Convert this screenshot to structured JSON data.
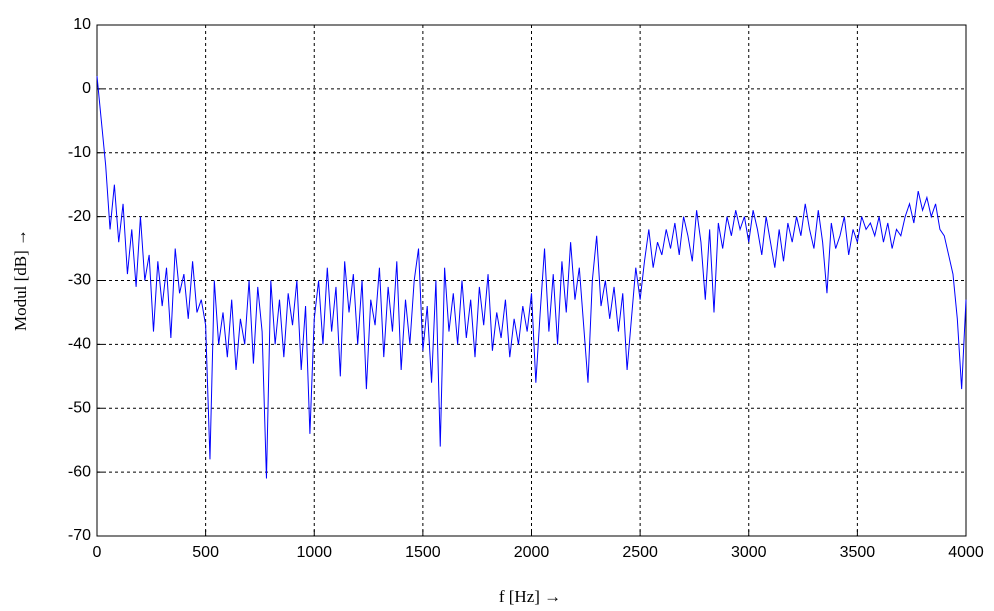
{
  "chart_data": {
    "type": "line",
    "xlabel": "f [Hz] →",
    "ylabel": "Modul [dB] →",
    "xlim": [
      0,
      4000
    ],
    "ylim": [
      -70,
      10
    ],
    "xticks": [
      0,
      500,
      1000,
      1500,
      2000,
      2500,
      3000,
      3500,
      4000
    ],
    "yticks": [
      -70,
      -60,
      -50,
      -40,
      -30,
      -20,
      -10,
      0,
      10
    ],
    "grid": true,
    "x": [
      0,
      20,
      40,
      60,
      80,
      100,
      120,
      140,
      160,
      180,
      200,
      220,
      240,
      260,
      280,
      300,
      320,
      340,
      360,
      380,
      400,
      420,
      440,
      460,
      480,
      500,
      520,
      540,
      560,
      580,
      600,
      620,
      640,
      660,
      680,
      700,
      720,
      740,
      760,
      780,
      800,
      820,
      840,
      860,
      880,
      900,
      920,
      940,
      960,
      980,
      1000,
      1020,
      1040,
      1060,
      1080,
      1100,
      1120,
      1140,
      1160,
      1180,
      1200,
      1220,
      1240,
      1260,
      1280,
      1300,
      1320,
      1340,
      1360,
      1380,
      1400,
      1420,
      1440,
      1460,
      1480,
      1500,
      1520,
      1540,
      1560,
      1580,
      1600,
      1620,
      1640,
      1660,
      1680,
      1700,
      1720,
      1740,
      1760,
      1780,
      1800,
      1820,
      1840,
      1860,
      1880,
      1900,
      1920,
      1940,
      1960,
      1980,
      2000,
      2020,
      2040,
      2060,
      2080,
      2100,
      2120,
      2140,
      2160,
      2180,
      2200,
      2220,
      2240,
      2260,
      2280,
      2300,
      2320,
      2340,
      2360,
      2380,
      2400,
      2420,
      2440,
      2460,
      2480,
      2500,
      2520,
      2540,
      2560,
      2580,
      2600,
      2620,
      2640,
      2660,
      2680,
      2700,
      2720,
      2740,
      2760,
      2780,
      2800,
      2820,
      2840,
      2860,
      2880,
      2900,
      2920,
      2940,
      2960,
      2980,
      3000,
      3020,
      3040,
      3060,
      3080,
      3100,
      3120,
      3140,
      3160,
      3180,
      3200,
      3220,
      3240,
      3260,
      3280,
      3300,
      3320,
      3340,
      3360,
      3380,
      3400,
      3420,
      3440,
      3460,
      3480,
      3500,
      3520,
      3540,
      3560,
      3580,
      3600,
      3620,
      3640,
      3660,
      3680,
      3700,
      3720,
      3740,
      3760,
      3780,
      3800,
      3820,
      3840,
      3860,
      3880,
      3900,
      3920,
      3940,
      3960,
      3980,
      4000
    ],
    "series": [
      {
        "color": "#0000ff",
        "values": [
          2,
          -5,
          -12,
          -22,
          -15,
          -24,
          -18,
          -29,
          -22,
          -31,
          -20,
          -30,
          -26,
          -38,
          -27,
          -34,
          -28,
          -39,
          -25,
          -32,
          -29,
          -36,
          -27,
          -35,
          -33,
          -37,
          -58,
          -30,
          -40,
          -35,
          -42,
          -33,
          -44,
          -36,
          -40,
          -30,
          -43,
          -31,
          -38,
          -61,
          -30,
          -40,
          -33,
          -42,
          -32,
          -37,
          -30,
          -44,
          -34,
          -54,
          -36,
          -30,
          -40,
          -28,
          -38,
          -31,
          -45,
          -27,
          -35,
          -29,
          -40,
          -30,
          -47,
          -33,
          -37,
          -28,
          -42,
          -31,
          -38,
          -27,
          -44,
          -33,
          -40,
          -30,
          -25,
          -41,
          -34,
          -46,
          -30,
          -56,
          -28,
          -38,
          -32,
          -40,
          -30,
          -39,
          -33,
          -42,
          -31,
          -37,
          -29,
          -41,
          -35,
          -39,
          -33,
          -42,
          -36,
          -40,
          -34,
          -38,
          -32,
          -46,
          -35,
          -25,
          -38,
          -29,
          -40,
          -27,
          -35,
          -24,
          -33,
          -28,
          -37,
          -46,
          -30,
          -23,
          -34,
          -30,
          -36,
          -31,
          -38,
          -32,
          -44,
          -36,
          -28,
          -33,
          -27,
          -22,
          -28,
          -24,
          -26,
          -22,
          -25,
          -21,
          -26,
          -20,
          -23,
          -27,
          -19,
          -24,
          -33,
          -22,
          -35,
          -21,
          -25,
          -20,
          -23,
          -19,
          -22,
          -20,
          -24,
          -19,
          -22,
          -26,
          -20,
          -24,
          -28,
          -22,
          -27,
          -21,
          -24,
          -20,
          -23,
          -18,
          -22,
          -25,
          -19,
          -24,
          -32,
          -21,
          -25,
          -23,
          -20,
          -26,
          -22,
          -24,
          -20,
          -22,
          -21,
          -23,
          -20,
          -24,
          -21,
          -25,
          -22,
          -23,
          -20,
          -18,
          -21,
          -16,
          -19,
          -17,
          -20,
          -18,
          -22,
          -23,
          -26,
          -29,
          -36,
          -47,
          -33
        ]
      }
    ]
  }
}
